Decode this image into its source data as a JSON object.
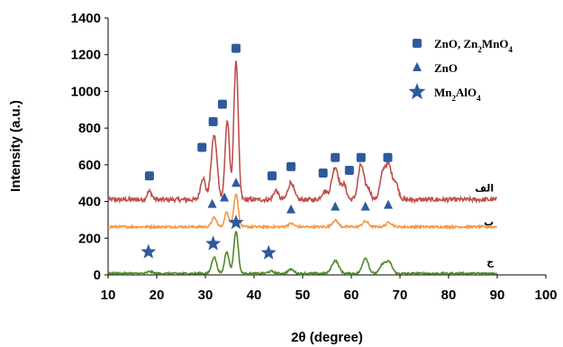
{
  "colors": {
    "curve_a": "#c0504d",
    "curve_b": "#f79646",
    "curve_c": "#4f8a2b",
    "marker": "#2e5a9c"
  },
  "chart_data": {
    "type": "line",
    "title": "",
    "xlabel": "2θ (degree)",
    "ylabel": "Intensity (a.u.)",
    "xlim": [
      10,
      100
    ],
    "ylim": [
      0,
      1400
    ],
    "xticks": [
      10,
      20,
      30,
      40,
      50,
      60,
      70,
      80,
      90,
      100
    ],
    "yticks": [
      0,
      200,
      400,
      600,
      800,
      1000,
      1200,
      1400
    ],
    "grid": false,
    "legend_position": "top-right",
    "legend": [
      {
        "marker": "square",
        "label_parts": [
          [
            "ZnO, Zn",
            false
          ],
          [
            "2",
            true
          ],
          [
            "MnO",
            false
          ],
          [
            "4",
            true
          ]
        ]
      },
      {
        "marker": "triangle",
        "label_parts": [
          [
            "ZnO",
            false
          ]
        ]
      },
      {
        "marker": "star",
        "label_parts": [
          [
            "Mn",
            false
          ],
          [
            "2",
            true
          ],
          [
            "AlO",
            false
          ],
          [
            "4",
            true
          ]
        ]
      }
    ],
    "series": [
      {
        "curve_label": "الف",
        "baseline": 410,
        "x_range": [
          10,
          90
        ],
        "peaks": [
          [
            18.5,
            45,
            0.5
          ],
          [
            29.5,
            120,
            0.5
          ],
          [
            31.8,
            350,
            0.6
          ],
          [
            34.5,
            430,
            0.45
          ],
          [
            36.3,
            760,
            0.45
          ],
          [
            44.5,
            50,
            0.5
          ],
          [
            47.6,
            95,
            0.6
          ],
          [
            54.5,
            45,
            0.6
          ],
          [
            56.7,
            180,
            0.7
          ],
          [
            58.5,
            80,
            0.5
          ],
          [
            62.0,
            190,
            0.6
          ],
          [
            63.5,
            60,
            0.5
          ],
          [
            66.5,
            140,
            0.6
          ],
          [
            67.7,
            170,
            0.6
          ],
          [
            69.1,
            90,
            0.6
          ]
        ]
      },
      {
        "curve_label": "ب",
        "baseline": 262,
        "x_range": [
          10,
          90
        ],
        "peaks": [
          [
            31.8,
            50,
            0.5
          ],
          [
            34.4,
            80,
            0.45
          ],
          [
            36.3,
            180,
            0.45
          ],
          [
            47.6,
            18,
            0.6
          ],
          [
            56.7,
            35,
            0.6
          ],
          [
            62.9,
            30,
            0.6
          ],
          [
            67.8,
            25,
            0.6
          ]
        ]
      },
      {
        "curve_label": "ج",
        "baseline": 8,
        "x_range": [
          10,
          90
        ],
        "peaks": [
          [
            18.6,
            10,
            0.5
          ],
          [
            31.8,
            90,
            0.5
          ],
          [
            34.4,
            120,
            0.45
          ],
          [
            36.3,
            230,
            0.45
          ],
          [
            43.5,
            12,
            0.6
          ],
          [
            47.6,
            22,
            0.6
          ],
          [
            56.7,
            70,
            0.7
          ],
          [
            62.9,
            85,
            0.6
          ],
          [
            66.5,
            50,
            0.6
          ],
          [
            67.8,
            60,
            0.6
          ]
        ]
      }
    ],
    "markers": {
      "square": [
        [
          18.5,
          540
        ],
        [
          29.3,
          695
        ],
        [
          31.6,
          835
        ],
        [
          33.5,
          930
        ],
        [
          36.3,
          1235
        ],
        [
          43.7,
          540
        ],
        [
          47.6,
          590
        ],
        [
          54.2,
          555
        ],
        [
          56.7,
          640
        ],
        [
          59.6,
          570
        ],
        [
          62.0,
          640
        ],
        [
          67.5,
          640
        ]
      ],
      "triangle": [
        [
          31.4,
          385
        ],
        [
          33.9,
          420
        ],
        [
          36.3,
          500
        ],
        [
          47.6,
          355
        ],
        [
          56.7,
          370
        ],
        [
          62.9,
          370
        ],
        [
          67.6,
          380
        ]
      ],
      "star": [
        [
          18.3,
          125
        ],
        [
          31.6,
          170
        ],
        [
          36.3,
          285
        ],
        [
          43.0,
          120
        ]
      ]
    }
  }
}
